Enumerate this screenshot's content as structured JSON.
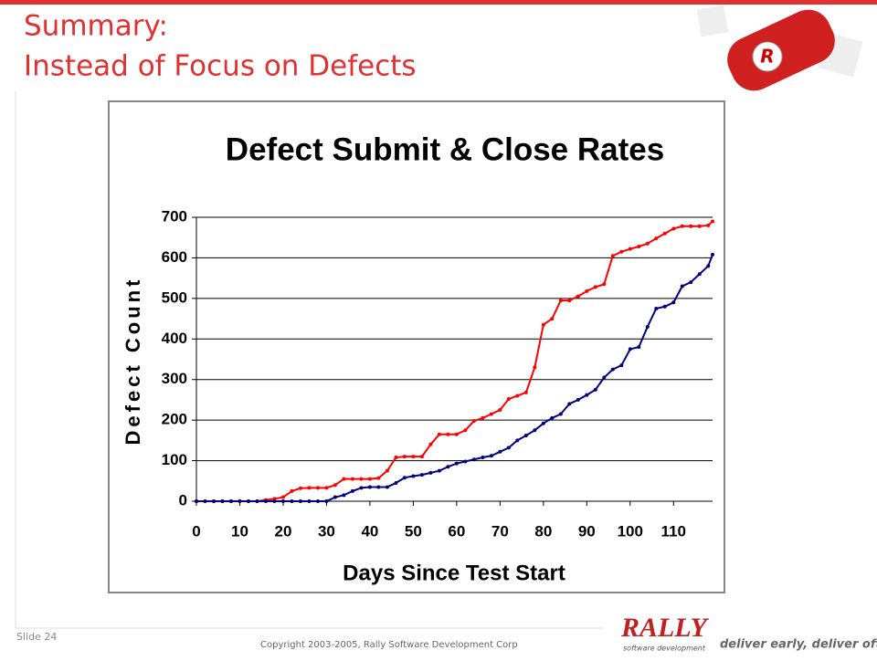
{
  "slide": {
    "title_lines": [
      "Summary:",
      "Instead of Focus on Defects"
    ],
    "slide_number": "Slide 24",
    "copyright": "Copyright 2003-2005, Rally Software Development Corp",
    "logo": "RALLY",
    "logo_subtitle": "software development",
    "tagline": "deliver early, deliver often"
  },
  "chart_data": {
    "type": "line",
    "title": "Defect Submit & Close Rates",
    "x_label": "Days Since Test Start",
    "y_label": "Defect Count",
    "x": [
      0,
      2,
      4,
      6,
      8,
      10,
      12,
      14,
      16,
      18,
      20,
      22,
      24,
      26,
      28,
      30,
      32,
      34,
      36,
      38,
      40,
      42,
      44,
      46,
      48,
      50,
      52,
      54,
      56,
      58,
      60,
      62,
      64,
      66,
      68,
      70,
      72,
      74,
      76,
      78,
      80,
      82,
      84,
      86,
      88,
      90,
      92,
      94,
      96,
      98,
      100,
      102,
      104,
      106,
      108,
      110,
      112,
      114,
      116,
      118,
      119
    ],
    "series": [
      {
        "color": "#ff0000",
        "values": [
          0,
          0,
          0,
          0,
          0,
          0,
          0,
          0,
          3,
          6,
          10,
          25,
          32,
          33,
          33,
          33,
          40,
          55,
          55,
          55,
          55,
          57,
          75,
          108,
          110,
          110,
          110,
          140,
          165,
          165,
          165,
          175,
          198,
          205,
          215,
          225,
          252,
          260,
          268,
          330,
          435,
          450,
          495,
          495,
          505,
          518,
          528,
          535,
          605,
          615,
          622,
          628,
          635,
          648,
          660,
          672,
          678,
          678,
          678,
          680,
          690
        ]
      },
      {
        "color": "#000080",
        "values": [
          0,
          0,
          0,
          0,
          0,
          0,
          0,
          0,
          0,
          0,
          0,
          0,
          0,
          0,
          0,
          0,
          10,
          15,
          25,
          33,
          35,
          35,
          35,
          45,
          58,
          62,
          65,
          70,
          75,
          85,
          93,
          98,
          103,
          108,
          112,
          122,
          132,
          150,
          162,
          175,
          192,
          205,
          215,
          240,
          250,
          262,
          275,
          305,
          325,
          335,
          375,
          380,
          430,
          475,
          480,
          490,
          530,
          540,
          560,
          580,
          608
        ]
      }
    ],
    "xlim": [
      0,
      119
    ],
    "xticks": [
      0,
      10,
      20,
      30,
      40,
      50,
      60,
      70,
      80,
      90,
      100,
      110
    ],
    "ylim": [
      0,
      700
    ],
    "yticks": [
      0,
      100,
      200,
      300,
      400,
      500,
      600,
      700
    ],
    "grid": true
  }
}
